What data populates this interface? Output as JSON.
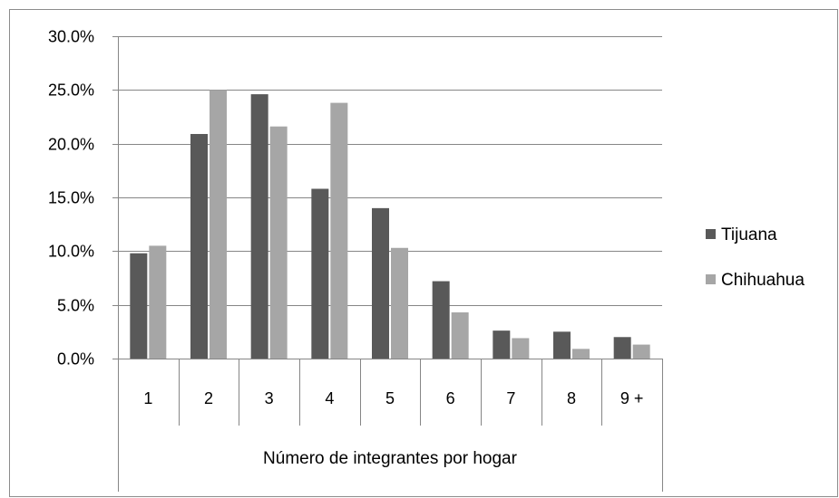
{
  "chart_data": {
    "type": "bar",
    "title": "",
    "xlabel": "Número de integrantes por hogar",
    "ylabel": "",
    "categories": [
      "1",
      "2",
      "3",
      "4",
      "5",
      "6",
      "7",
      "8",
      "9 +"
    ],
    "series": [
      {
        "name": "Tijuana",
        "color": "#595959",
        "values": [
          9.8,
          20.9,
          24.6,
          15.8,
          14.0,
          7.2,
          2.6,
          2.5,
          2.0
        ]
      },
      {
        "name": "Chihuahua",
        "color": "#a6a6a6",
        "values": [
          10.5,
          25.0,
          21.6,
          23.8,
          10.3,
          4.3,
          1.9,
          0.9,
          1.3
        ]
      }
    ],
    "ylim": [
      0,
      30
    ],
    "yticks": [
      "0.0%",
      "5.0%",
      "10.0%",
      "15.0%",
      "20.0%",
      "25.0%",
      "30.0%"
    ],
    "ytick_values": [
      0,
      5,
      10,
      15,
      20,
      25,
      30
    ],
    "grid": true,
    "legend": "right"
  }
}
